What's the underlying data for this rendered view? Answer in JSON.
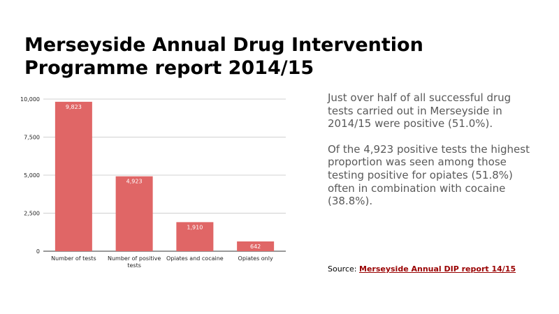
{
  "slide": {
    "title_line1": "Merseyside Annual Drug Intervention",
    "title_line2": "Programme report 2014/15",
    "paragraph1": "Just over half of all successful drug tests carried out in Merseyside in 2014/15 were positive (51.0%).",
    "paragraph2": "Of the 4,923 positive tests the highest proportion was seen among those testing positive for opiates (51.8%) often in combination with cocaine (38.8%).",
    "source_label": "Source:",
    "source_link": "Merseyside Annual DIP report 14/15"
  },
  "chart_data": {
    "type": "bar",
    "categories": [
      [
        "Number of tests"
      ],
      [
        "Number of positive",
        "tests"
      ],
      [
        "Opiates and cocaine"
      ],
      [
        "Opiates only"
      ]
    ],
    "values": [
      9823,
      4923,
      1910,
      642
    ],
    "value_labels": [
      "9,823",
      "4,923",
      "1,910",
      "642"
    ],
    "yticks": [
      0,
      2500,
      5000,
      7500,
      10000
    ],
    "ytick_labels": [
      "0",
      "2,500",
      "5,000",
      "7,500",
      "10,000"
    ],
    "ylim": [
      0,
      10000
    ],
    "grid": true,
    "bar_color": "#e06666",
    "title": "",
    "xlabel": "",
    "ylabel": ""
  }
}
